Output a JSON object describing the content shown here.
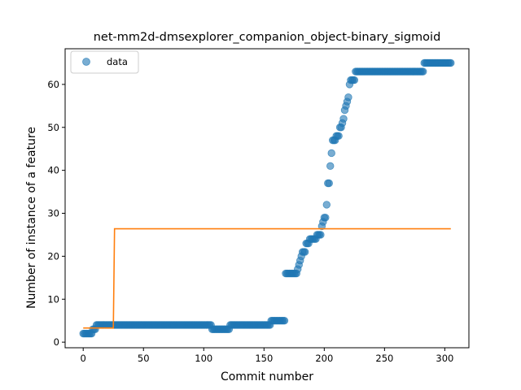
{
  "chart_data": {
    "type": "scatter",
    "title": "net-mm2d-dmsexplorer_companion_object-binary_sigmoid",
    "xlabel": "Commit number",
    "ylabel": "Number of instance of a feature",
    "xlim": [
      -15,
      320
    ],
    "ylim": [
      -1.3,
      68.3
    ],
    "xticks": [
      0,
      50,
      100,
      150,
      200,
      250,
      300
    ],
    "yticks": [
      0,
      10,
      20,
      30,
      40,
      50,
      60
    ],
    "grid": false,
    "legend_position": "top-left",
    "colors": {
      "data": "#1f77b4",
      "fit": "#ff7f0e"
    },
    "series": [
      {
        "name": "data",
        "kind": "scatter",
        "segments": [
          [
            [
              0,
              2
            ],
            [
              1,
              2
            ],
            [
              2,
              2
            ],
            [
              3,
              2
            ],
            [
              4,
              2
            ],
            [
              5,
              2
            ],
            [
              6,
              2
            ],
            [
              7,
              2
            ],
            [
              8,
              3
            ],
            [
              9,
              3
            ],
            [
              10,
              3
            ],
            [
              11,
              4
            ],
            [
              12,
              4
            ],
            [
              13,
              4
            ],
            [
              14,
              4
            ],
            [
              15,
              4
            ],
            [
              16,
              4
            ],
            [
              17,
              4
            ],
            [
              18,
              4
            ],
            [
              19,
              4
            ],
            [
              20,
              4
            ],
            [
              21,
              4
            ],
            [
              22,
              4
            ],
            [
              23,
              4
            ],
            [
              24,
              4
            ],
            [
              25,
              4
            ],
            [
              26,
              4
            ],
            [
              27,
              4
            ],
            [
              28,
              4
            ],
            [
              29,
              4
            ],
            [
              30,
              4
            ]
          ],
          {
            "x0": 31,
            "x1": 106,
            "y": 4
          },
          {
            "x0": 107,
            "x1": 121,
            "y": 3
          },
          {
            "x0": 122,
            "x1": 155,
            "y": 4
          },
          {
            "x0": 156,
            "x1": 167,
            "y": 5
          },
          {
            "x0": 168,
            "x1": 177,
            "y": 16
          },
          [
            [
              178,
              17
            ],
            [
              179,
              18
            ],
            [
              180,
              19
            ],
            [
              181,
              20
            ],
            [
              182,
              21
            ],
            [
              183,
              21
            ],
            [
              184,
              21
            ],
            [
              185,
              23
            ],
            [
              186,
              23
            ],
            [
              187,
              23
            ],
            [
              188,
              24
            ],
            [
              189,
              24
            ],
            [
              190,
              24
            ],
            [
              191,
              24
            ],
            [
              192,
              24
            ],
            [
              193,
              24
            ],
            [
              194,
              25
            ],
            [
              195,
              25
            ],
            [
              196,
              25
            ],
            [
              197,
              25
            ],
            [
              198,
              27
            ],
            [
              199,
              28
            ],
            [
              200,
              29
            ],
            [
              201,
              29
            ],
            [
              202,
              32
            ],
            [
              203,
              37
            ],
            [
              204,
              37
            ],
            [
              205,
              41
            ],
            [
              206,
              44
            ],
            [
              207,
              47
            ],
            [
              208,
              47
            ],
            [
              209,
              47
            ],
            [
              210,
              48
            ],
            [
              211,
              48
            ],
            [
              212,
              48
            ],
            [
              213,
              50
            ],
            [
              214,
              50
            ],
            [
              215,
              51
            ],
            [
              216,
              52
            ],
            [
              217,
              54
            ],
            [
              218,
              55
            ],
            [
              219,
              56
            ],
            [
              220,
              57
            ],
            [
              221,
              60
            ],
            [
              222,
              61
            ],
            [
              223,
              61
            ],
            [
              224,
              61
            ],
            [
              225,
              61
            ]
          ],
          {
            "x0": 226,
            "x1": 282,
            "y": 63
          },
          {
            "x0": 283,
            "x1": 305,
            "y": 65
          }
        ]
      },
      {
        "name": "",
        "kind": "line",
        "points": [
          [
            0,
            3.3
          ],
          [
            25,
            3.3
          ],
          [
            26,
            26.4
          ],
          [
            305,
            26.4
          ]
        ]
      }
    ]
  }
}
